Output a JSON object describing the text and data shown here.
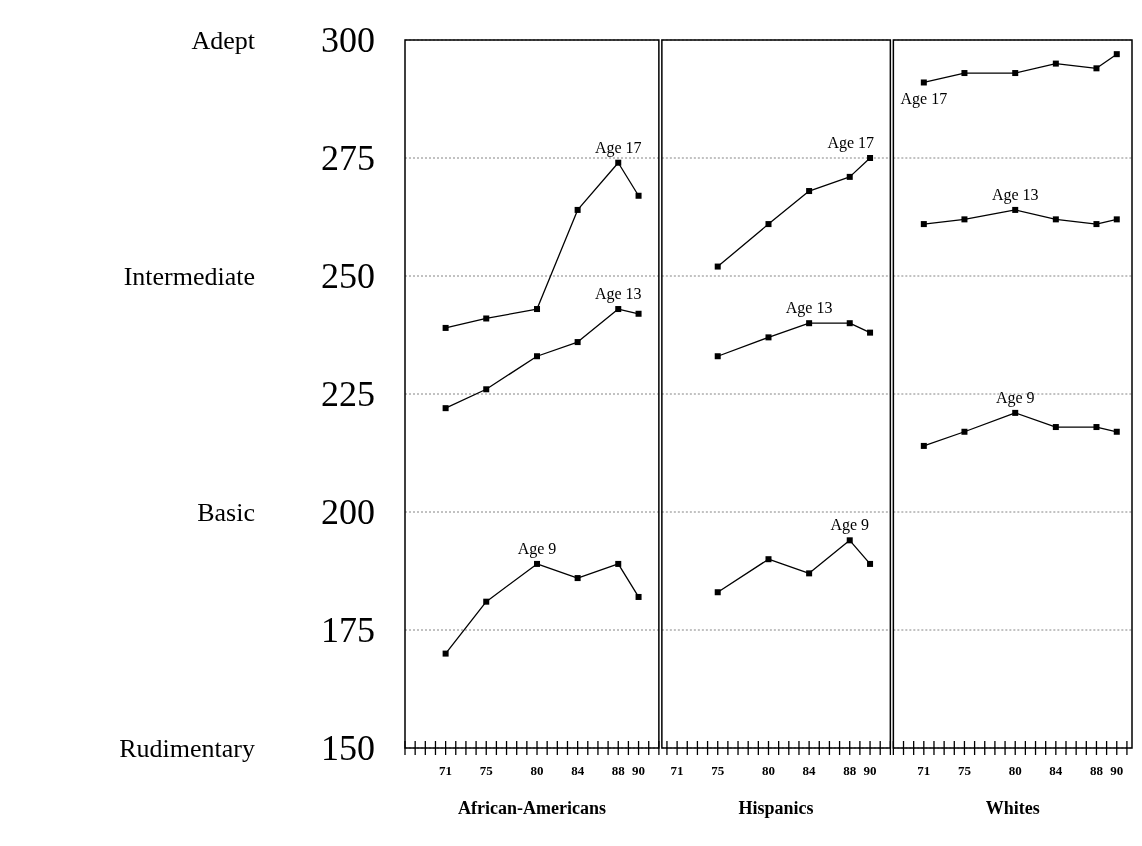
{
  "chart_data": [
    {
      "type": "line",
      "xlabel": "African-Americans",
      "xlim": [
        67,
        92
      ],
      "ylim": [
        150,
        300
      ],
      "yticks": [
        150,
        175,
        200,
        225,
        250,
        275,
        300
      ],
      "xticks": [
        {
          "value": 67,
          "label": null
        },
        {
          "value": 68,
          "label": null
        },
        {
          "value": 69,
          "label": null
        },
        {
          "value": 70,
          "label": null
        },
        71,
        {
          "value": 72,
          "label": null
        },
        {
          "value": 73,
          "label": null
        },
        {
          "value": 74,
          "label": null
        },
        75,
        {
          "value": 76,
          "label": null
        },
        {
          "value": 77,
          "label": null
        },
        {
          "value": 78,
          "label": null
        },
        {
          "value": 79,
          "label": null
        },
        80,
        {
          "value": 81,
          "label": null
        },
        {
          "value": 82,
          "label": null
        },
        {
          "value": 83,
          "label": null
        },
        84,
        {
          "value": 85,
          "label": null
        },
        {
          "value": 86,
          "label": null
        },
        {
          "value": 87,
          "label": null
        },
        88,
        {
          "value": 89,
          "label": null
        },
        90,
        {
          "value": 91,
          "label": null
        },
        {
          "value": 92,
          "label": null
        }
      ],
      "grid": "y",
      "marker": "square",
      "annotations": [
        "Adept",
        "Intermediate",
        "Basic",
        "Rudimentary"
      ],
      "series": [
        {
          "name": "Age 17",
          "color": "#000000",
          "x": [
            71,
            75,
            80,
            84,
            88,
            90
          ],
          "values": [
            239,
            241,
            243,
            264,
            274,
            267
          ]
        },
        {
          "name": "Age 13",
          "color": "#000000",
          "x": [
            71,
            75,
            80,
            84,
            88,
            90
          ],
          "values": [
            222,
            226,
            233,
            236,
            243,
            242
          ]
        },
        {
          "name": "Age 9",
          "color": "#000000",
          "x": [
            71,
            75,
            80,
            84,
            88,
            90
          ],
          "values": [
            170,
            181,
            189,
            186,
            189,
            182
          ]
        }
      ]
    },
    {
      "type": "line",
      "xlabel": "Hispanics",
      "xlim": [
        69.5,
        92
      ],
      "ylim": [
        150,
        300
      ],
      "yticks": [
        150,
        175,
        200,
        225,
        250,
        275,
        300
      ],
      "tick_labels": "x",
      "xticks": [
        {
          "value": 70,
          "label": null
        },
        71,
        {
          "value": 72,
          "label": null
        },
        {
          "value": 73,
          "label": null
        },
        {
          "value": 74,
          "label": null
        },
        75,
        {
          "value": 76,
          "label": null
        },
        {
          "value": 77,
          "label": null
        },
        {
          "value": 78,
          "label": null
        },
        {
          "value": 79,
          "label": null
        },
        80,
        {
          "value": 81,
          "label": null
        },
        {
          "value": 82,
          "label": null
        },
        {
          "value": 83,
          "label": null
        },
        84,
        {
          "value": 85,
          "label": null
        },
        {
          "value": 86,
          "label": null
        },
        {
          "value": 87,
          "label": null
        },
        88,
        {
          "value": 89,
          "label": null
        },
        90,
        {
          "value": 91,
          "label": null
        },
        {
          "value": 92,
          "label": null
        }
      ],
      "grid": "y",
      "marker": "square",
      "series": [
        {
          "name": "Age 17",
          "color": "#000000",
          "x": [
            75,
            80,
            84,
            88,
            90
          ],
          "values": [
            252,
            261,
            268,
            271,
            275
          ]
        },
        {
          "name": "Age 13",
          "color": "#000000",
          "x": [
            75,
            80,
            84,
            88,
            90
          ],
          "values": [
            233,
            237,
            240,
            240,
            238
          ]
        },
        {
          "name": "Age 9",
          "color": "#000000",
          "x": [
            75,
            80,
            84,
            88,
            90
          ],
          "values": [
            183,
            190,
            187,
            194,
            189
          ]
        }
      ]
    },
    {
      "type": "line",
      "xlabel": "Whites",
      "xlim": [
        68,
        91.5
      ],
      "ylim": [
        150,
        300
      ],
      "yticks": [
        150,
        175,
        200,
        225,
        250,
        275,
        300
      ],
      "tick_labels": "x",
      "xticks": [
        {
          "value": 68,
          "label": null
        },
        {
          "value": 69,
          "label": null
        },
        {
          "value": 70,
          "label": null
        },
        71,
        {
          "value": 72,
          "label": null
        },
        {
          "value": 73,
          "label": null
        },
        {
          "value": 74,
          "label": null
        },
        75,
        {
          "value": 76,
          "label": null
        },
        {
          "value": 77,
          "label": null
        },
        {
          "value": 78,
          "label": null
        },
        {
          "value": 79,
          "label": null
        },
        80,
        {
          "value": 81,
          "label": null
        },
        {
          "value": 82,
          "label": null
        },
        {
          "value": 83,
          "label": null
        },
        84,
        {
          "value": 85,
          "label": null
        },
        {
          "value": 86,
          "label": null
        },
        {
          "value": 87,
          "label": null
        },
        88,
        {
          "value": 89,
          "label": null
        },
        90,
        {
          "value": 91,
          "label": null
        }
      ],
      "grid": "y",
      "marker": "square",
      "series": [
        {
          "name": "Age 17",
          "color": "#000000",
          "x": [
            71,
            75,
            80,
            84,
            88,
            90
          ],
          "values": [
            291,
            293,
            293,
            295,
            294,
            297
          ]
        },
        {
          "name": "Age 13",
          "color": "#000000",
          "x": [
            71,
            75,
            80,
            84,
            88,
            90
          ],
          "values": [
            261,
            262,
            264,
            262,
            261,
            262
          ]
        },
        {
          "name": "Age 9",
          "color": "#000000",
          "x": [
            71,
            75,
            80,
            84,
            88,
            90
          ],
          "values": [
            214,
            217,
            221,
            218,
            218,
            217
          ]
        }
      ]
    }
  ]
}
